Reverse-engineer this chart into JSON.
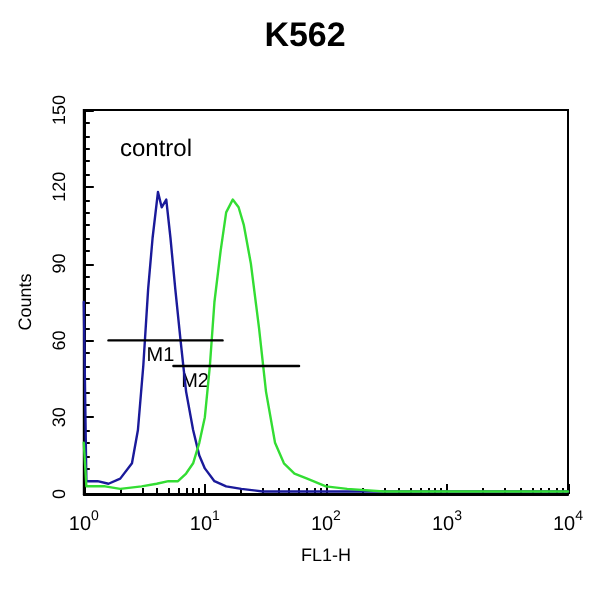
{
  "chart_data": {
    "type": "line",
    "title": "K562",
    "xlabel": "FL1-H",
    "ylabel": "Counts",
    "annotations": [
      "control",
      {
        "text": "M1",
        "x": 4.3,
        "y": 60
      },
      {
        "text": "M2",
        "x": 8.3,
        "y": 50
      }
    ],
    "log": "x",
    "grid": false,
    "marker": "none",
    "line_style": "solid",
    "xlim": [
      1,
      10000
    ],
    "xticks": [
      {
        "value": 1,
        "label": "10$^{0}$"
      },
      {
        "value": 10,
        "label": "10$^{1}$"
      },
      {
        "value": 100,
        "label": "10$^{2}$"
      },
      {
        "value": 1000,
        "label": "10$^{3}$"
      },
      {
        "value": 10000,
        "label": "10$^{4}$"
      }
    ],
    "ylim": [
      0,
      150
    ],
    "yticks": [
      0,
      30,
      60,
      90,
      120,
      150
    ],
    "series": [
      {
        "color": "#1a1a9a",
        "x": [
          1,
          1.05,
          1.3,
          1.6,
          2,
          2.5,
          2.8,
          3.1,
          3.4,
          3.7,
          4.1,
          4.4,
          4.8,
          5.2,
          5.7,
          6.3,
          7,
          8,
          9,
          10,
          12,
          15,
          20,
          30,
          60,
          100,
          10000
        ],
        "values": [
          75,
          5,
          5,
          4,
          6,
          12,
          25,
          50,
          80,
          100,
          118,
          112,
          115,
          100,
          80,
          60,
          40,
          25,
          15,
          10,
          5,
          3,
          2,
          1,
          1,
          1,
          1
        ]
      },
      {
        "color": "#33dd33",
        "x": [
          1,
          1.05,
          1.5,
          2,
          3,
          4,
          5,
          6,
          7,
          8,
          9,
          10,
          11,
          12,
          13.5,
          15,
          17,
          19,
          21,
          24,
          28,
          32,
          38,
          45,
          55,
          70,
          100,
          150,
          300,
          1000,
          10000
        ],
        "values": [
          20,
          3,
          3,
          2,
          3,
          4,
          5,
          5,
          8,
          12,
          20,
          30,
          50,
          75,
          95,
          110,
          115,
          112,
          105,
          90,
          65,
          40,
          20,
          12,
          8,
          6,
          3,
          2,
          1,
          1,
          1
        ]
      },
      {
        "color": "#000000",
        "x": [
          1.6,
          14
        ],
        "values": [
          60,
          60
        ]
      },
      {
        "color": "#000000",
        "x": [
          5.5,
          60
        ],
        "values": [
          50,
          50
        ]
      }
    ]
  }
}
